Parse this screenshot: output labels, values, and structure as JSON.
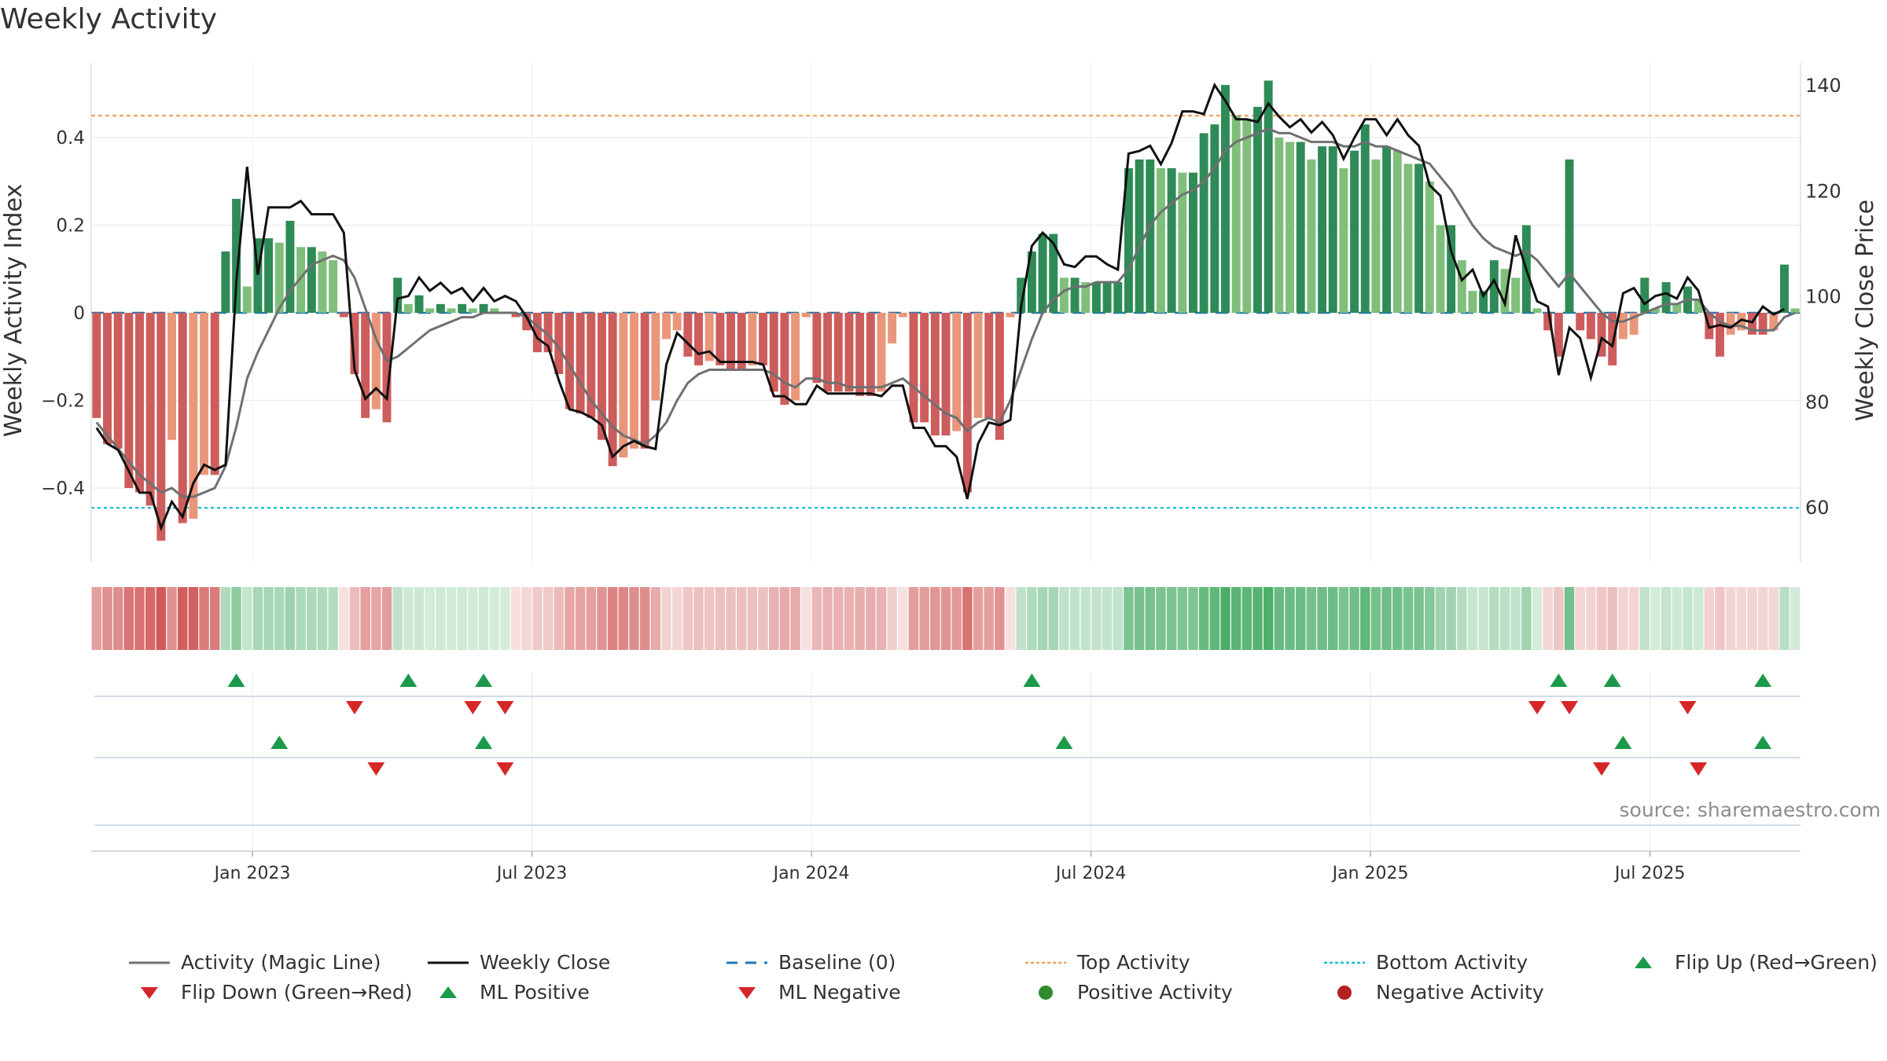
{
  "title": "Weekly Activity",
  "source": "source: sharemaestro.com",
  "chart_data": {
    "type": "bar",
    "title": "Weekly Activity",
    "ylabel_left": "Weekly Activity Index",
    "ylabel_right": "Weekly Close Price",
    "left_ticks": [
      {
        "value": 0.4,
        "label": "0.4"
      },
      {
        "value": 0.2,
        "label": "0.2"
      },
      {
        "value": 0,
        "label": "0"
      },
      {
        "value": -0.2,
        "label": "−0.2"
      },
      {
        "value": -0.4,
        "label": "−0.4"
      }
    ],
    "right_ticks": [
      {
        "value": 140,
        "label": "140"
      },
      {
        "value": 120,
        "label": "120"
      },
      {
        "value": 100,
        "label": "100"
      },
      {
        "value": 80,
        "label": "80"
      },
      {
        "value": 60,
        "label": "60"
      }
    ],
    "ylim_left": [
      -0.57,
      0.57
    ],
    "ylim_right": [
      50.2,
      145.3
    ],
    "x_ticks": [
      "Jan 2023",
      "Jul 2023",
      "Jan 2024",
      "Jul 2024",
      "Jan 2025",
      "Jul 2025"
    ],
    "x_tick_weeks": [
      15,
      41,
      67,
      93,
      119,
      145
    ],
    "top_activity": 0.45,
    "bottom_activity": -0.445,
    "week_start": "2022-09-26",
    "activity": [
      -0.24,
      -0.3,
      -0.31,
      -0.4,
      -0.41,
      -0.44,
      -0.52,
      -0.29,
      -0.48,
      -0.47,
      -0.37,
      -0.37,
      0.14,
      0.26,
      0.06,
      0.17,
      0.17,
      0.16,
      0.21,
      0.15,
      0.15,
      0.14,
      0.12,
      -0.01,
      -0.14,
      -0.24,
      -0.22,
      -0.25,
      0.08,
      0.02,
      0.04,
      0.01,
      0.02,
      0.01,
      0.02,
      0.01,
      0.02,
      0.01,
      0.0,
      -0.01,
      -0.04,
      -0.09,
      -0.09,
      -0.14,
      -0.22,
      -0.23,
      -0.24,
      -0.29,
      -0.35,
      -0.33,
      -0.31,
      -0.31,
      -0.2,
      -0.06,
      -0.04,
      -0.1,
      -0.12,
      -0.11,
      -0.12,
      -0.13,
      -0.13,
      -0.12,
      -0.12,
      -0.18,
      -0.21,
      -0.2,
      -0.01,
      -0.16,
      -0.18,
      -0.18,
      -0.18,
      -0.19,
      -0.19,
      -0.18,
      -0.07,
      -0.01,
      -0.25,
      -0.25,
      -0.28,
      -0.28,
      -0.27,
      -0.41,
      -0.24,
      -0.24,
      -0.29,
      -0.01,
      0.08,
      0.14,
      0.18,
      0.18,
      0.08,
      0.08,
      0.07,
      0.07,
      0.07,
      0.07,
      0.33,
      0.35,
      0.35,
      0.33,
      0.33,
      0.32,
      0.32,
      0.41,
      0.43,
      0.52,
      0.45,
      0.44,
      0.47,
      0.53,
      0.4,
      0.39,
      0.39,
      0.35,
      0.38,
      0.38,
      0.33,
      0.37,
      0.43,
      0.35,
      0.38,
      0.37,
      0.34,
      0.34,
      0.3,
      0.2,
      0.2,
      0.12,
      0.05,
      0.05,
      0.12,
      0.1,
      0.08,
      0.2,
      0.01,
      -0.04,
      -0.1,
      0.35,
      -0.04,
      -0.06,
      -0.1,
      -0.12,
      -0.06,
      -0.05,
      0.08,
      0.01,
      0.07,
      0.02,
      0.06,
      0.03,
      -0.06,
      -0.1,
      -0.05,
      -0.04,
      -0.05,
      -0.05,
      -0.04,
      0.11,
      0.01
    ],
    "close": [
      75.0,
      72.0,
      70.8,
      66.8,
      62.7,
      62.7,
      56.0,
      61.0,
      58.1,
      64.5,
      68.0,
      67.0,
      68.0,
      102.7,
      124.5,
      104.0,
      116.8,
      116.8,
      116.8,
      118.0,
      115.5,
      115.5,
      115.5,
      112.0,
      86.0,
      80.5,
      82.5,
      80.5,
      99.5,
      100.0,
      103.5,
      101.0,
      102.5,
      100.5,
      101.5,
      99.0,
      101.5,
      99.0,
      100.0,
      99.0,
      96.0,
      92.0,
      90.5,
      84.0,
      78.5,
      78.0,
      77.0,
      75.5,
      69.5,
      71.5,
      72.5,
      71.5,
      71.0,
      87.0,
      93.0,
      91.0,
      89.0,
      89.5,
      87.5,
      87.5,
      87.5,
      87.5,
      87.0,
      81.0,
      81.0,
      79.5,
      79.5,
      83.0,
      81.5,
      81.5,
      81.5,
      81.5,
      81.5,
      81.0,
      83.0,
      83.0,
      75.0,
      75.0,
      71.5,
      71.5,
      69.5,
      61.5,
      72.0,
      76.0,
      75.5,
      76.5,
      98.0,
      109.5,
      112.0,
      110.0,
      106.0,
      105.5,
      107.5,
      107.5,
      106.0,
      105.0,
      127.0,
      127.5,
      128.5,
      125.0,
      129.0,
      135.0,
      135.0,
      134.5,
      140.0,
      137.0,
      133.5,
      133.5,
      133.0,
      136.5,
      134.0,
      132.0,
      133.5,
      131.0,
      133.0,
      130.5,
      126.0,
      130.0,
      133.5,
      133.5,
      130.5,
      133.5,
      130.5,
      128.5,
      121.0,
      119.0,
      108.5,
      103.0,
      105.0,
      100.0,
      103.0,
      98.5,
      111.5,
      105.0,
      99.0,
      98.0,
      85.0,
      94.0,
      92.0,
      84.5,
      92.0,
      90.5,
      100.5,
      101.5,
      98.5,
      100.0,
      100.5,
      99.5,
      103.5,
      101.0,
      94.0,
      94.5,
      94.0,
      95.5,
      95.0,
      98.0,
      96.5,
      97.5
    ],
    "magic_line": [
      -0.25,
      -0.28,
      -0.31,
      -0.34,
      -0.37,
      -0.39,
      -0.41,
      -0.4,
      -0.42,
      -0.42,
      -0.41,
      -0.4,
      -0.35,
      -0.26,
      -0.15,
      -0.09,
      -0.04,
      0.01,
      0.05,
      0.08,
      0.11,
      0.12,
      0.13,
      0.12,
      0.08,
      0.01,
      -0.06,
      -0.11,
      -0.1,
      -0.08,
      -0.06,
      -0.04,
      -0.03,
      -0.02,
      -0.01,
      -0.01,
      0.0,
      0.0,
      0.0,
      0.0,
      -0.01,
      -0.03,
      -0.05,
      -0.08,
      -0.12,
      -0.16,
      -0.2,
      -0.23,
      -0.26,
      -0.28,
      -0.29,
      -0.3,
      -0.28,
      -0.25,
      -0.2,
      -0.16,
      -0.14,
      -0.13,
      -0.13,
      -0.13,
      -0.13,
      -0.13,
      -0.13,
      -0.14,
      -0.16,
      -0.17,
      -0.15,
      -0.15,
      -0.16,
      -0.16,
      -0.17,
      -0.17,
      -0.17,
      -0.17,
      -0.16,
      -0.15,
      -0.17,
      -0.19,
      -0.21,
      -0.23,
      -0.24,
      -0.27,
      -0.25,
      -0.24,
      -0.25,
      -0.2,
      -0.13,
      -0.06,
      0.0,
      0.03,
      0.05,
      0.06,
      0.06,
      0.07,
      0.07,
      0.07,
      0.1,
      0.15,
      0.2,
      0.23,
      0.25,
      0.27,
      0.28,
      0.3,
      0.33,
      0.37,
      0.39,
      0.4,
      0.41,
      0.42,
      0.41,
      0.41,
      0.4,
      0.39,
      0.39,
      0.39,
      0.38,
      0.38,
      0.39,
      0.38,
      0.38,
      0.37,
      0.36,
      0.35,
      0.34,
      0.31,
      0.28,
      0.24,
      0.2,
      0.17,
      0.15,
      0.14,
      0.13,
      0.14,
      0.12,
      0.09,
      0.06,
      0.09,
      0.06,
      0.03,
      0.0,
      -0.02,
      -0.02,
      -0.01,
      0.0,
      0.01,
      0.02,
      0.02,
      0.03,
      0.03,
      0.0,
      -0.02,
      -0.03,
      -0.03,
      -0.04,
      -0.04,
      -0.04,
      -0.01,
      0.0
    ],
    "lane_1_flip_up": [
      13,
      29,
      36,
      87,
      136,
      141,
      155
    ],
    "lane_1_flip_down": [
      24,
      35,
      38,
      134,
      137,
      148
    ],
    "lane_2_ml_positive": [
      17,
      36,
      90,
      142,
      155
    ],
    "lane_2_ml_negative": [
      26,
      38,
      140,
      149
    ],
    "legend": [
      {
        "label": "Activity (Magic Line)",
        "symbol": "line",
        "color": "#707070"
      },
      {
        "label": "Weekly Close",
        "symbol": "line",
        "color": "#111111"
      },
      {
        "label": "Baseline (0)",
        "symbol": "dash",
        "color": "#1f77b4"
      },
      {
        "label": "Top Activity",
        "symbol": "dot",
        "color": "#f0a060"
      },
      {
        "label": "Bottom Activity",
        "symbol": "dot",
        "color": "#17becf"
      },
      {
        "label": "Flip Up (Red→Green)",
        "symbol": "triangle-up",
        "color": "#1a9a4a"
      },
      {
        "label": "Flip Down (Green→Red)",
        "symbol": "triangle-down",
        "color": "#d62728"
      },
      {
        "label": "ML Positive",
        "symbol": "triangle-up",
        "color": "#1a9a4a"
      },
      {
        "label": "ML Negative",
        "symbol": "triangle-down",
        "color": "#d62728"
      },
      {
        "label": "Positive Activity",
        "symbol": "circle",
        "color": "#2e8b2e"
      },
      {
        "label": "Negative Activity",
        "symbol": "circle",
        "color": "#b22222"
      }
    ],
    "grid": true
  }
}
